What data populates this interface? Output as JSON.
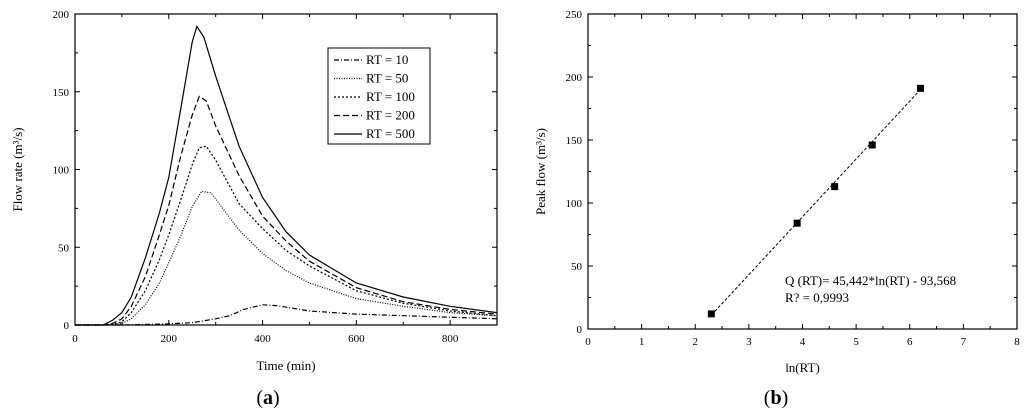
{
  "panels": {
    "a": {
      "label_open": "(",
      "label_letter": "a",
      "label_close": ")"
    },
    "b": {
      "label_open": "(",
      "label_letter": "b",
      "label_close": ")"
    }
  },
  "chart_data": [
    {
      "type": "line",
      "title": "",
      "xlabel": "Time (min)",
      "ylabel": "Flow rate (m³/s)",
      "xlim": [
        0,
        900
      ],
      "ylim": [
        0,
        200
      ],
      "xticks": [
        0,
        200,
        400,
        600,
        800
      ],
      "yticks": [
        0,
        50,
        100,
        150,
        200
      ],
      "legend_position": "top-right",
      "series": [
        {
          "name": "RT = 10",
          "style": "dash-dot",
          "x": [
            0,
            60,
            100,
            150,
            200,
            250,
            300,
            330,
            360,
            400,
            430,
            460,
            500,
            600,
            700,
            800,
            900
          ],
          "y": [
            0,
            0,
            0,
            0.3,
            0.8,
            1.5,
            4,
            6,
            10,
            13,
            12.5,
            11,
            9,
            7,
            6,
            5,
            4
          ]
        },
        {
          "name": "RT = 50",
          "style": "dense-dot",
          "x": [
            0,
            60,
            80,
            100,
            120,
            150,
            180,
            200,
            225,
            250,
            270,
            290,
            310,
            350,
            400,
            450,
            500,
            600,
            700,
            800,
            900
          ],
          "y": [
            0,
            0,
            0.2,
            1,
            4,
            13,
            27,
            40,
            57,
            76,
            86,
            85,
            77,
            61,
            46,
            35,
            27,
            17,
            12,
            8,
            6
          ]
        },
        {
          "name": "RT = 100",
          "style": "dotted",
          "x": [
            0,
            60,
            80,
            100,
            120,
            150,
            180,
            200,
            225,
            250,
            265,
            280,
            300,
            350,
            400,
            450,
            500,
            600,
            700,
            800,
            900
          ],
          "y": [
            0,
            0,
            0.5,
            2,
            8,
            22,
            42,
            58,
            80,
            103,
            114,
            115,
            106,
            78,
            62,
            48,
            38,
            22,
            14,
            9,
            6
          ]
        },
        {
          "name": "RT = 200",
          "style": "dashed",
          "x": [
            0,
            60,
            80,
            100,
            120,
            150,
            180,
            200,
            225,
            250,
            265,
            280,
            300,
            350,
            400,
            450,
            500,
            600,
            700,
            800,
            900
          ],
          "y": [
            0,
            0,
            1,
            4,
            12,
            31,
            58,
            77,
            108,
            135,
            147,
            144,
            128,
            96,
            70,
            54,
            41,
            24,
            15,
            10,
            7
          ]
        },
        {
          "name": "RT = 500",
          "style": "solid",
          "x": [
            0,
            60,
            80,
            100,
            120,
            150,
            180,
            200,
            225,
            250,
            260,
            275,
            300,
            350,
            400,
            450,
            500,
            600,
            700,
            800,
            900
          ],
          "y": [
            0,
            0,
            3,
            8,
            18,
            43,
            72,
            95,
            138,
            182,
            192,
            185,
            160,
            115,
            82,
            60,
            45,
            27,
            18,
            12,
            8
          ]
        }
      ]
    },
    {
      "type": "scatter",
      "title": "",
      "xlabel": "ln(RT)",
      "ylabel": "Peak flow (m³/s)",
      "xlim": [
        0,
        8
      ],
      "ylim": [
        0,
        250
      ],
      "xticks": [
        0,
        1,
        2,
        3,
        4,
        5,
        6,
        7,
        8
      ],
      "yticks": [
        0,
        50,
        100,
        150,
        200,
        250
      ],
      "points": [
        {
          "x": 2.3,
          "y": 12
        },
        {
          "x": 3.9,
          "y": 84
        },
        {
          "x": 4.6,
          "y": 113
        },
        {
          "x": 5.3,
          "y": 146
        },
        {
          "x": 6.2,
          "y": 191
        }
      ],
      "fit_line": {
        "style": "dashed",
        "x": [
          2.3,
          6.2
        ],
        "y": [
          11,
          190
        ]
      },
      "annotations": [
        "Q (RT)= 45,442*ln(RT) - 93,568",
        "R? = 0,9993"
      ]
    }
  ]
}
